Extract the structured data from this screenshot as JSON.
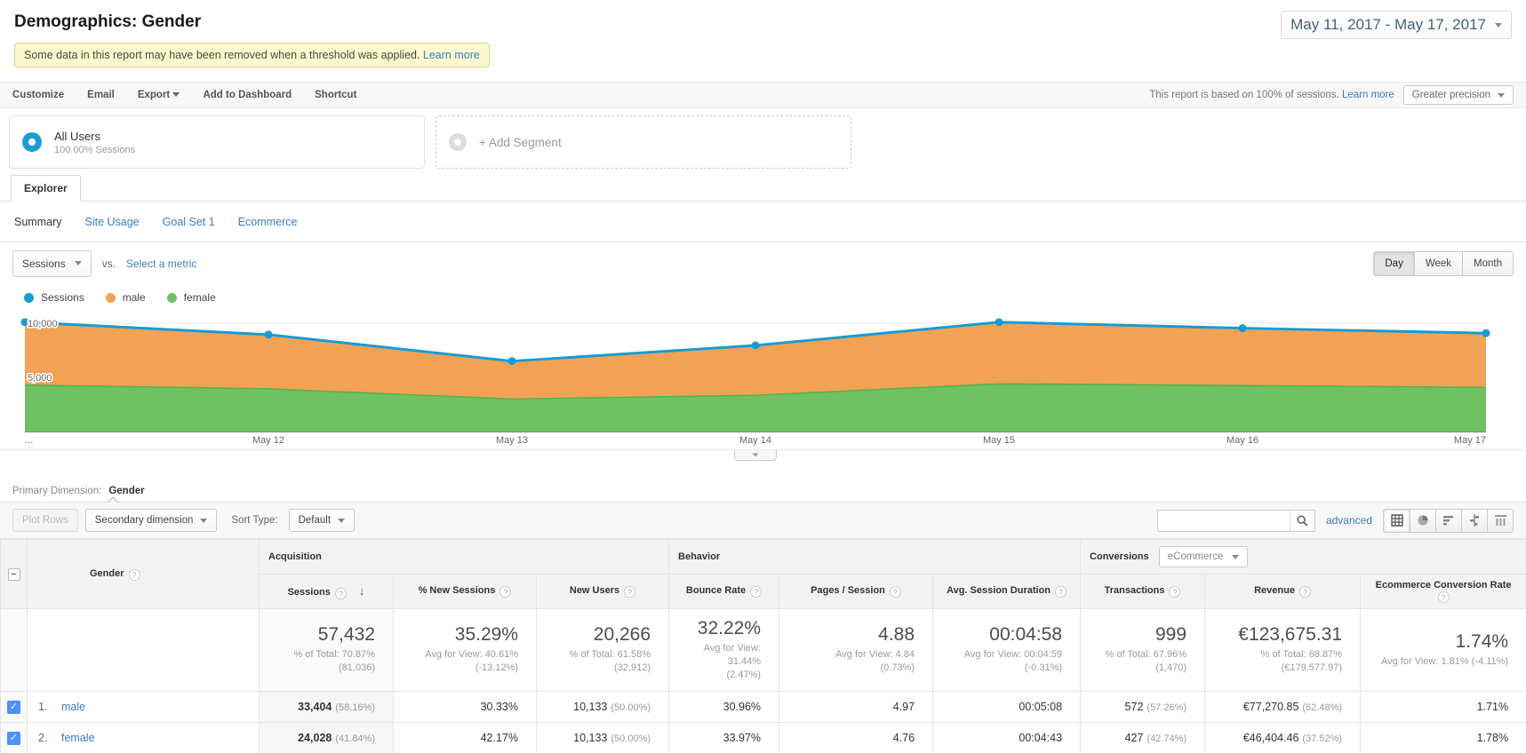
{
  "header": {
    "title": "Demographics: Gender",
    "date_range": "May 11, 2017 - May 17, 2017",
    "banner": {
      "text": "Some data in this report may have been removed when a threshold was applied.",
      "link": "Learn more"
    }
  },
  "action_bar": {
    "items": [
      "Customize",
      "Email",
      "Export",
      "Add to Dashboard",
      "Shortcut"
    ],
    "sampling_text": "This report is based on 100% of sessions.",
    "sampling_link": "Learn more",
    "precision": "Greater precision"
  },
  "segments": {
    "all_users": {
      "name": "All Users",
      "detail": "100.00% Sessions"
    },
    "add_segment": "+ Add Segment"
  },
  "tabs": {
    "main": "Explorer",
    "sub": [
      "Summary",
      "Site Usage",
      "Goal Set 1",
      "Ecommerce"
    ],
    "active_sub": "Summary"
  },
  "chart_controls": {
    "metric": "Sessions",
    "vs_label": "vs.",
    "select_metric": "Select a metric",
    "granularity": [
      "Day",
      "Week",
      "Month"
    ],
    "active_granularity": "Day"
  },
  "chart_data": {
    "type": "area",
    "stacked": true,
    "x_labels": [
      "...",
      "May 12",
      "May 13",
      "May 14",
      "May 15",
      "May 16",
      "May 17"
    ],
    "series": [
      {
        "name": "Sessions",
        "type": "line",
        "color": "#169bd5",
        "values": [
          10100,
          8950,
          6500,
          7950,
          10100,
          9550,
          9080
        ]
      },
      {
        "name": "male",
        "type": "area",
        "color": "#f2a254",
        "values": [
          5800,
          5000,
          3500,
          4600,
          5700,
          5300,
          5000
        ]
      },
      {
        "name": "female",
        "type": "area",
        "color": "#70c162",
        "values": [
          4300,
          3950,
          3000,
          3350,
          4400,
          4250,
          4080
        ]
      }
    ],
    "stack_order": [
      "female",
      "male"
    ],
    "ylim": [
      0,
      11150
    ],
    "y_ticks": [
      {
        "label": "5,000",
        "value": 5000
      },
      {
        "label": "10,000",
        "value": 10000
      }
    ],
    "gridline_values": [
      5000,
      10000
    ],
    "legend_position": "top-left",
    "female_edge_color": "#57b14b"
  },
  "primary_dimension": {
    "label": "Primary Dimension:",
    "value": "Gender"
  },
  "table_toolbar": {
    "plot_rows": "Plot Rows",
    "secondary_dimension": "Secondary dimension",
    "sort_type_label": "Sort Type:",
    "sort_type_value": "Default",
    "search_placeholder": "",
    "advanced_link": "advanced"
  },
  "table": {
    "dimension_column": "Gender",
    "groups": {
      "acquisition": "Acquisition",
      "behavior": "Behavior",
      "conversions_label": "Conversions",
      "conversions_value": "eCommerce"
    },
    "columns": [
      "Sessions",
      "% New Sessions",
      "New Users",
      "Bounce Rate",
      "Pages / Session",
      "Avg. Session Duration",
      "Transactions",
      "Revenue",
      "Ecommerce Conversion Rate"
    ],
    "totals": [
      {
        "value": "57,432",
        "line1": "% of Total: 70.87%",
        "line2": "(81,036)"
      },
      {
        "value": "35.29%",
        "line1": "Avg for View: 40.61%",
        "line2": "(-13.12%)"
      },
      {
        "value": "20,266",
        "line1": "% of Total: 61.58%",
        "line2": "(32,912)"
      },
      {
        "value": "32.22%",
        "line1": "Avg for View: 31.44%",
        "line2": "(2.47%)"
      },
      {
        "value": "4.88",
        "line1": "Avg for View: 4.84",
        "line2": "(0.73%)"
      },
      {
        "value": "00:04:58",
        "line1": "Avg for View: 00:04:59",
        "line2": "(-0.31%)"
      },
      {
        "value": "999",
        "line1": "% of Total: 67.96%",
        "line2": "(1,470)"
      },
      {
        "value": "€123,675.31",
        "line1": "% of Total: 68.87%",
        "line2": "(€179,577.97)"
      },
      {
        "value": "1.74%",
        "line1": "Avg for View: 1.81% (-4.11%)",
        "line2": ""
      }
    ],
    "rows": [
      {
        "rank": "1.",
        "name": "male",
        "checked": true,
        "cells": [
          {
            "v": "33,404",
            "pct": "(58.16%)"
          },
          {
            "v": "30.33%",
            "pct": ""
          },
          {
            "v": "10,133",
            "pct": "(50.00%)"
          },
          {
            "v": "30.96%",
            "pct": ""
          },
          {
            "v": "4.97",
            "pct": ""
          },
          {
            "v": "00:05:08",
            "pct": ""
          },
          {
            "v": "572",
            "pct": "(57.26%)"
          },
          {
            "v": "€77,270.85",
            "pct": "(62.48%)"
          },
          {
            "v": "1.71%",
            "pct": ""
          }
        ]
      },
      {
        "rank": "2.",
        "name": "female",
        "checked": true,
        "cells": [
          {
            "v": "24,028",
            "pct": "(41.84%)"
          },
          {
            "v": "42.17%",
            "pct": ""
          },
          {
            "v": "10,133",
            "pct": "(50.00%)"
          },
          {
            "v": "33.97%",
            "pct": ""
          },
          {
            "v": "4.76",
            "pct": ""
          },
          {
            "v": "00:04:43",
            "pct": ""
          },
          {
            "v": "427",
            "pct": "(42.74%)"
          },
          {
            "v": "€46,404.46",
            "pct": "(37.52%)"
          },
          {
            "v": "1.78%",
            "pct": ""
          }
        ]
      }
    ]
  }
}
